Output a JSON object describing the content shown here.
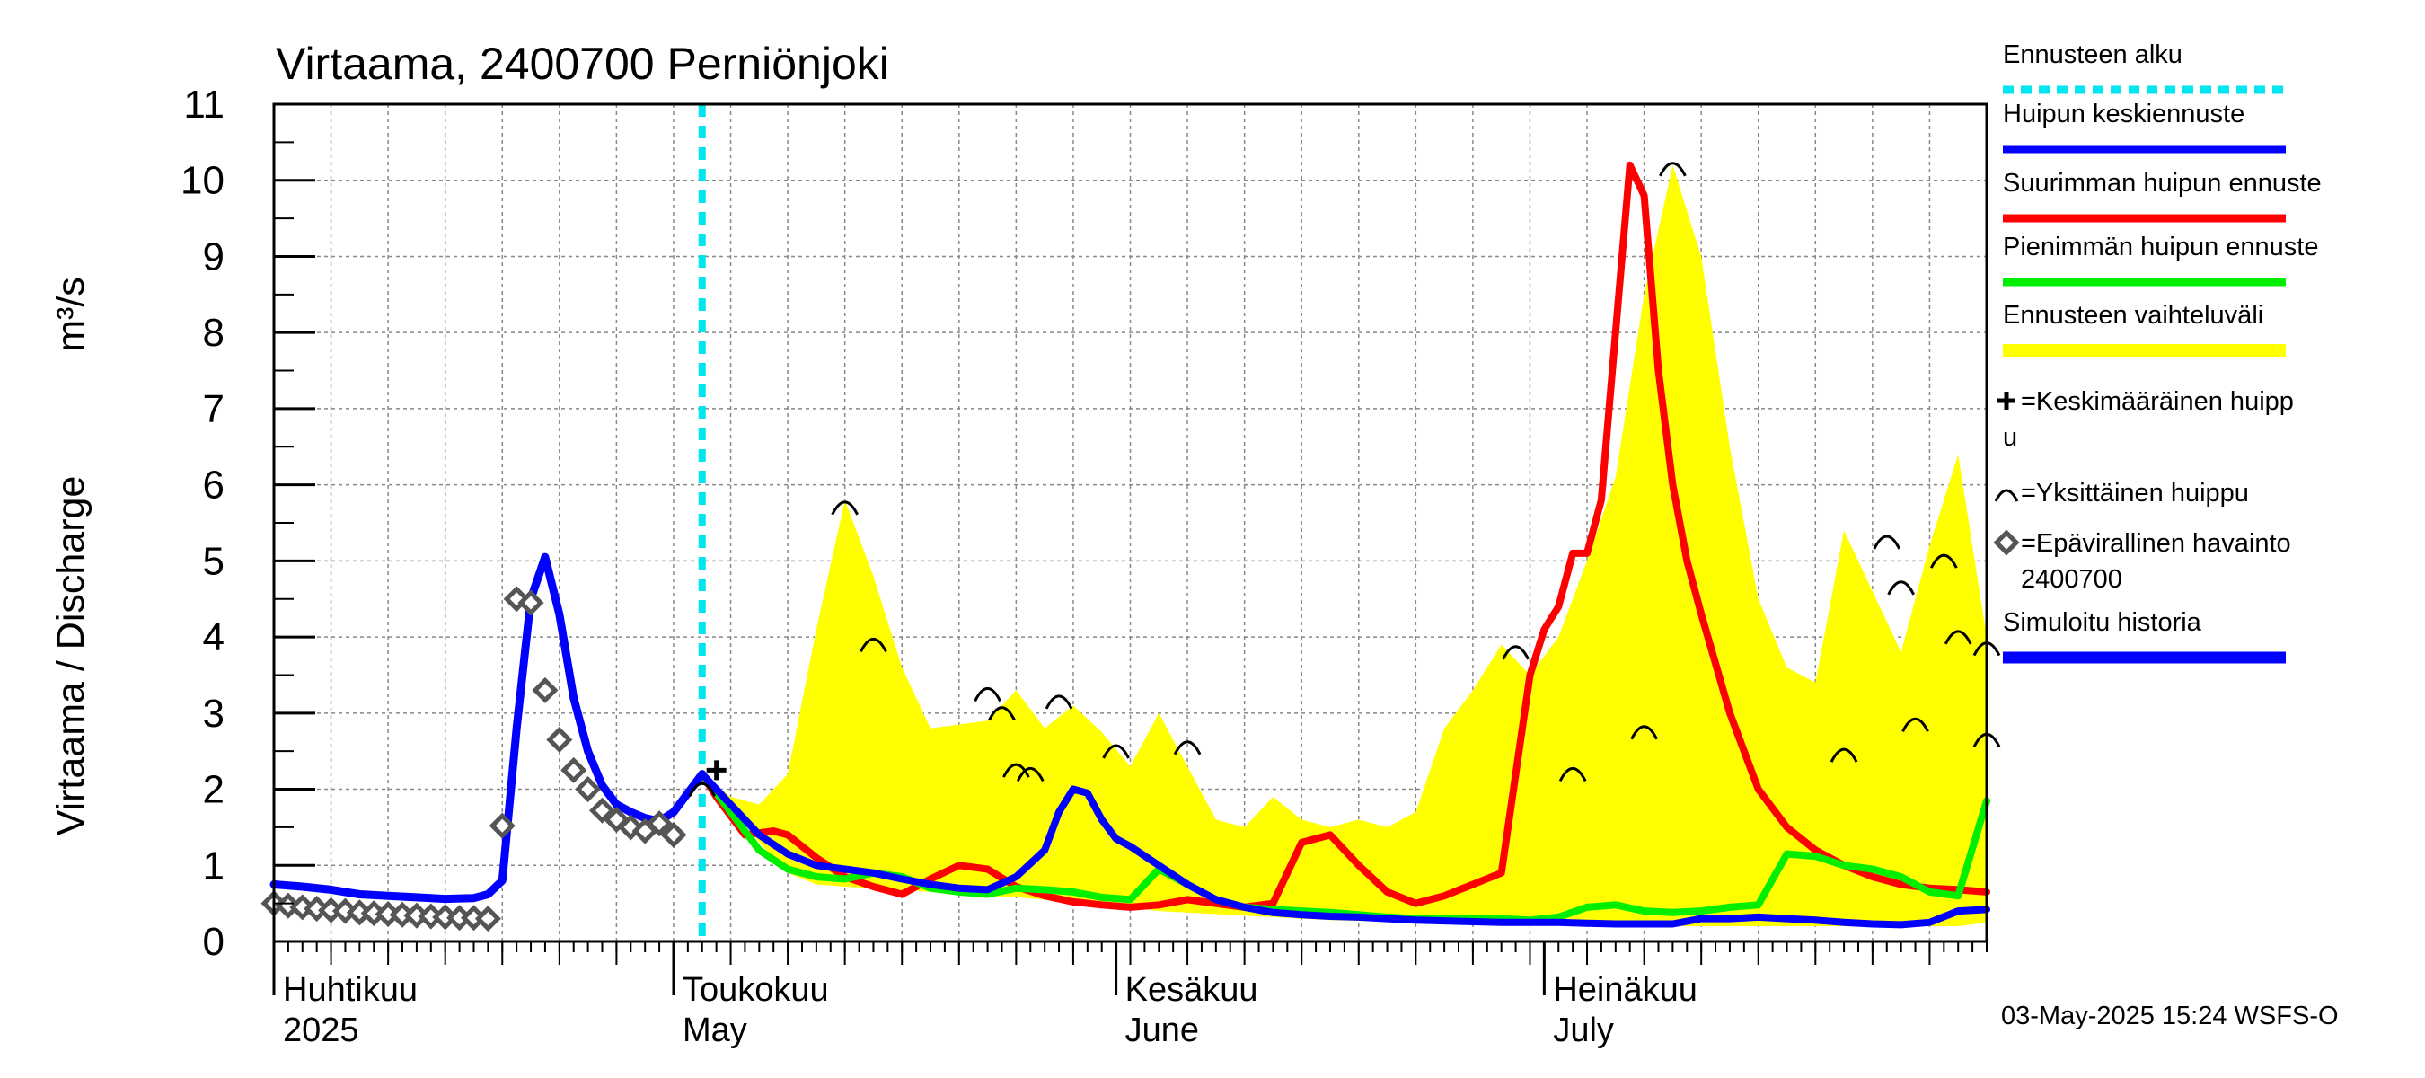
{
  "chart_data": {
    "type": "line",
    "title": "Virtaama, 2400700 Perniönjoki",
    "ylabel": "Virtaama / Discharge",
    "yunit": "m³/s",
    "ylim": [
      0,
      11
    ],
    "yticks": [
      "0",
      "1",
      "2",
      "3",
      "4",
      "5",
      "6",
      "7",
      "8",
      "9",
      "10",
      "11"
    ],
    "xlim_day": [
      0,
      120
    ],
    "month_labels": [
      {
        "day": 0,
        "fi": "Huhtikuu",
        "en": "2025"
      },
      {
        "day": 28,
        "fi": "Toukokuu",
        "en": "May"
      },
      {
        "day": 59,
        "fi": "Kesäkuu",
        "en": "June"
      },
      {
        "day": 89,
        "fi": "Heinäkuu",
        "en": "July"
      }
    ],
    "forecast_start_day": 30,
    "legend": [
      {
        "label": "Ennusteen alku",
        "color": "#00e5ee",
        "style": "dashed"
      },
      {
        "label": "Huipun keskiennuste",
        "color": "#0000ff",
        "style": "line"
      },
      {
        "label": "Suurimman huipun ennuste",
        "color": "#ff0000",
        "style": "line"
      },
      {
        "label": "Pienimmän huipun ennuste",
        "color": "#00ee00",
        "style": "line"
      },
      {
        "label": "Ennusteen vaihteluväli",
        "color": "#ffff00",
        "style": "band"
      },
      {
        "label_1": "=Keskimääräinen huipp",
        "label_2": "u",
        "symbol": "plus"
      },
      {
        "label": "=Yksittäinen huippu",
        "symbol": "arc"
      },
      {
        "label_1": "=Epävirallinen havainto",
        "label_2": "2400700",
        "symbol": "diamond"
      },
      {
        "label": "Simuloitu historia",
        "color": "#0000ff",
        "style": "thick"
      }
    ],
    "footer": "03-May-2025 15:24 WSFS-O",
    "series": [
      {
        "name": "Ennusteen vaihteluväli upper",
        "color": "#ffff00",
        "x": [
          30,
          32,
          34,
          36,
          38,
          40,
          42,
          44,
          46,
          48,
          50,
          52,
          54,
          56,
          58,
          60,
          62,
          64,
          66,
          68,
          70,
          72,
          74,
          76,
          78,
          80,
          82,
          84,
          86,
          88,
          90,
          92,
          94,
          96,
          98,
          100,
          102,
          104,
          106,
          108,
          110,
          112,
          114,
          116,
          118,
          120
        ],
        "y": [
          2.2,
          1.9,
          1.8,
          2.2,
          4.1,
          5.8,
          4.8,
          3.6,
          2.8,
          2.85,
          2.9,
          3.3,
          2.8,
          3.1,
          2.75,
          2.3,
          3.0,
          2.3,
          1.6,
          1.5,
          1.9,
          1.6,
          1.5,
          1.6,
          1.5,
          1.7,
          2.8,
          3.3,
          3.9,
          3.5,
          4.0,
          5.0,
          6.1,
          8.5,
          10.2,
          9.0,
          6.5,
          4.5,
          3.6,
          3.4,
          5.4,
          4.6,
          3.8,
          5.2,
          6.4,
          4.0
        ]
      },
      {
        "name": "Ennusteen vaihteluväli lower",
        "color": "#ffff00",
        "x": [
          30,
          32,
          34,
          36,
          38,
          40,
          42,
          44,
          46,
          48,
          50,
          52,
          54,
          56,
          58,
          60,
          62,
          64,
          66,
          68,
          70,
          72,
          74,
          76,
          78,
          80,
          82,
          84,
          86,
          88,
          90,
          92,
          94,
          96,
          98,
          100,
          102,
          104,
          106,
          108,
          110,
          112,
          114,
          116,
          118,
          120
        ],
        "y": [
          2.2,
          1.8,
          1.3,
          0.9,
          0.75,
          0.72,
          0.7,
          0.68,
          0.65,
          0.62,
          0.6,
          0.58,
          0.55,
          0.52,
          0.5,
          0.45,
          0.4,
          0.38,
          0.36,
          0.34,
          0.32,
          0.3,
          0.28,
          0.27,
          0.26,
          0.25,
          0.24,
          0.23,
          0.22,
          0.22,
          0.21,
          0.21,
          0.2,
          0.2,
          0.2,
          0.2,
          0.2,
          0.2,
          0.2,
          0.2,
          0.2,
          0.2,
          0.2,
          0.2,
          0.2,
          0.25
        ]
      },
      {
        "name": "Suurimman huipun ennuste",
        "color": "#ff0000",
        "x": [
          30,
          31,
          33,
          35,
          36,
          38,
          40,
          42,
          44,
          46,
          48,
          50,
          52,
          54,
          56,
          58,
          60,
          62,
          64,
          66,
          68,
          70,
          72,
          74,
          76,
          78,
          80,
          82,
          84,
          86,
          88,
          89,
          90,
          91,
          92,
          93,
          94,
          95,
          96,
          97,
          98,
          99,
          100,
          102,
          104,
          106,
          108,
          110,
          112,
          114,
          116,
          118,
          120
        ],
        "y": [
          2.2,
          1.9,
          1.4,
          1.45,
          1.4,
          1.1,
          0.85,
          0.72,
          0.62,
          0.82,
          1.0,
          0.95,
          0.72,
          0.6,
          0.52,
          0.48,
          0.45,
          0.48,
          0.55,
          0.5,
          0.45,
          0.5,
          1.3,
          1.4,
          1.0,
          0.65,
          0.5,
          0.6,
          0.75,
          0.9,
          3.5,
          4.1,
          4.4,
          5.1,
          5.1,
          5.8,
          8.0,
          10.2,
          9.8,
          7.5,
          6.0,
          5.0,
          4.3,
          3.0,
          2.0,
          1.5,
          1.2,
          1.0,
          0.85,
          0.75,
          0.7,
          0.68,
          0.65
        ]
      },
      {
        "name": "Pienimmän huipun ennuste",
        "color": "#00ee00",
        "x": [
          30,
          32,
          34,
          36,
          38,
          40,
          42,
          44,
          46,
          48,
          50,
          52,
          54,
          56,
          58,
          60,
          62,
          64,
          66,
          68,
          70,
          72,
          74,
          76,
          78,
          80,
          82,
          84,
          86,
          88,
          90,
          92,
          94,
          96,
          98,
          100,
          102,
          104,
          106,
          108,
          110,
          112,
          114,
          116,
          118,
          120
        ],
        "y": [
          2.2,
          1.7,
          1.2,
          0.95,
          0.85,
          0.82,
          0.9,
          0.85,
          0.7,
          0.65,
          0.62,
          0.7,
          0.68,
          0.65,
          0.58,
          0.55,
          0.95,
          0.75,
          0.55,
          0.45,
          0.42,
          0.4,
          0.38,
          0.35,
          0.32,
          0.3,
          0.3,
          0.3,
          0.3,
          0.28,
          0.32,
          0.45,
          0.48,
          0.4,
          0.38,
          0.4,
          0.45,
          0.48,
          1.15,
          1.12,
          1.0,
          0.95,
          0.85,
          0.65,
          0.6,
          1.85
        ]
      },
      {
        "name": "Huipun keskiennuste",
        "color": "#0000ff",
        "x": [
          30,
          32,
          34,
          36,
          38,
          40,
          42,
          44,
          46,
          48,
          50,
          52,
          54,
          55,
          56,
          57,
          58,
          59,
          60,
          62,
          64,
          66,
          68,
          70,
          72,
          74,
          76,
          78,
          80,
          82,
          84,
          86,
          88,
          90,
          92,
          94,
          96,
          98,
          100,
          102,
          104,
          106,
          108,
          110,
          112,
          114,
          116,
          118,
          120
        ],
        "y": [
          2.2,
          1.8,
          1.4,
          1.15,
          1.0,
          0.95,
          0.9,
          0.82,
          0.75,
          0.7,
          0.68,
          0.85,
          1.2,
          1.7,
          2.0,
          1.95,
          1.6,
          1.35,
          1.25,
          1.0,
          0.75,
          0.55,
          0.45,
          0.38,
          0.35,
          0.33,
          0.32,
          0.3,
          0.28,
          0.27,
          0.26,
          0.25,
          0.25,
          0.25,
          0.24,
          0.23,
          0.23,
          0.23,
          0.3,
          0.3,
          0.32,
          0.3,
          0.28,
          0.25,
          0.23,
          0.22,
          0.25,
          0.4,
          0.42
        ]
      },
      {
        "name": "Simuloitu historia",
        "color": "#0000ff",
        "x": [
          0,
          2,
          4,
          6,
          8,
          10,
          12,
          14,
          15,
          16,
          17,
          18,
          19,
          20,
          21,
          22,
          23,
          24,
          25,
          26,
          27,
          28,
          29,
          30
        ],
        "y": [
          0.75,
          0.72,
          0.68,
          0.62,
          0.6,
          0.58,
          0.56,
          0.57,
          0.62,
          0.8,
          2.8,
          4.5,
          5.05,
          4.3,
          3.2,
          2.5,
          2.05,
          1.8,
          1.7,
          1.62,
          1.58,
          1.7,
          1.95,
          2.2
        ]
      },
      {
        "name": "Epävirallinen havainto 2400700",
        "symbol": "diamond",
        "x": [
          0,
          1,
          2,
          3,
          4,
          5,
          6,
          7,
          8,
          9,
          10,
          11,
          12,
          13,
          14,
          15,
          16,
          17,
          18,
          19,
          20,
          21,
          22,
          23,
          24,
          25,
          26,
          27,
          28
        ],
        "y": [
          0.5,
          0.47,
          0.45,
          0.43,
          0.41,
          0.4,
          0.38,
          0.37,
          0.36,
          0.35,
          0.34,
          0.33,
          0.32,
          0.31,
          0.31,
          0.3,
          1.52,
          4.5,
          4.45,
          3.3,
          2.65,
          2.25,
          2.0,
          1.72,
          1.6,
          1.5,
          1.45,
          1.55,
          1.4
        ]
      },
      {
        "name": "Keskimääräinen huippu",
        "symbol": "plus",
        "x": [
          31
        ],
        "y": [
          2.25
        ]
      },
      {
        "name": "Yksittäinen huippu",
        "symbol": "arc",
        "x": [
          30,
          40,
          42,
          50,
          51,
          52,
          53,
          55,
          59,
          64,
          87,
          91,
          96,
          98,
          110,
          113,
          114,
          115,
          117,
          118,
          120,
          120
        ],
        "y": [
          2.05,
          5.75,
          3.95,
          3.3,
          3.05,
          2.3,
          2.25,
          3.2,
          2.55,
          2.6,
          3.85,
          2.25,
          2.8,
          10.2,
          2.5,
          5.3,
          4.7,
          2.9,
          5.05,
          4.05,
          3.9,
          2.7
        ]
      }
    ]
  }
}
